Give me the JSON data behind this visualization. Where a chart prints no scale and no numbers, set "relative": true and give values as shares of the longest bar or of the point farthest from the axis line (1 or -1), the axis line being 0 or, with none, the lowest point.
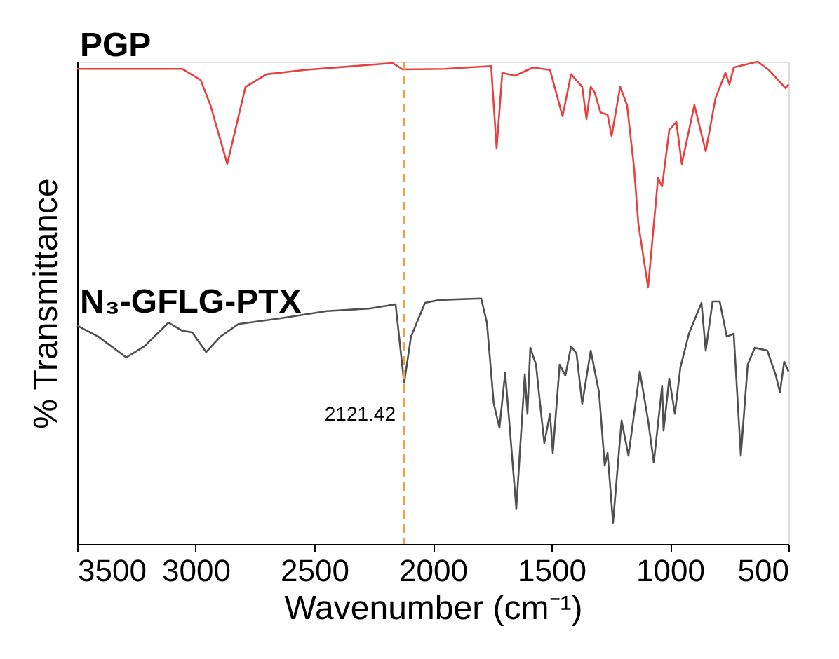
{
  "chart_data": {
    "type": "line",
    "relative": true,
    "xlabel": "Wavenumber (cm⁻¹)",
    "ylabel": "% Transmittance",
    "xlim": [
      3500,
      500
    ],
    "xticks": [
      3500,
      3000,
      2500,
      2000,
      1500,
      1000,
      500
    ],
    "grid": false,
    "legend": false,
    "line_style": "solid",
    "marker": "none",
    "series": [
      {
        "name": "PGP",
        "color": "#e8403f",
        "x": [
          3500,
          3056,
          2979,
          2938,
          2867,
          2790,
          2701,
          2541,
          2169,
          2127,
          1950,
          1754,
          1731,
          1707,
          1654,
          1577,
          1506,
          1453,
          1417,
          1370,
          1352,
          1334,
          1317,
          1293,
          1263,
          1246,
          1210,
          1181,
          1151,
          1133,
          1092,
          1068,
          1050,
          1033,
          1003,
          973,
          950,
          897,
          849,
          808,
          766,
          749,
          731,
          630,
          583,
          512,
          500
        ],
        "values": [
          0.985,
          0.985,
          0.962,
          0.91,
          0.788,
          0.948,
          0.974,
          0.983,
          0.997,
          0.984,
          0.985,
          0.991,
          0.82,
          0.977,
          0.971,
          0.988,
          0.983,
          0.887,
          0.974,
          0.948,
          0.881,
          0.948,
          0.936,
          0.895,
          0.89,
          0.846,
          0.948,
          0.91,
          0.779,
          0.663,
          0.532,
          0.663,
          0.759,
          0.741,
          0.858,
          0.875,
          0.788,
          0.91,
          0.814,
          0.924,
          0.977,
          0.953,
          0.988,
          1.0,
          0.983,
          0.945,
          0.953
        ]
      },
      {
        "name": "N₃-GFLG-PTX",
        "color": "#505050",
        "x": [
          3500,
          3411,
          3293,
          3216,
          3115,
          3056,
          3015,
          2956,
          2896,
          2820,
          2642,
          2447,
          2269,
          2157,
          2121,
          2092,
          2033,
          1973,
          1796,
          1772,
          1743,
          1719,
          1695,
          1678,
          1648,
          1612,
          1601,
          1589,
          1565,
          1530,
          1506,
          1494,
          1465,
          1441,
          1417,
          1394,
          1370,
          1334,
          1299,
          1275,
          1263,
          1240,
          1204,
          1175,
          1127,
          1092,
          1068,
          1033,
          1027,
          1003,
          979,
          956,
          920,
          867,
          849,
          820,
          790,
          760,
          731,
          701,
          672,
          642,
          589,
          553,
          536,
          518,
          500
        ],
        "values": [
          0.453,
          0.43,
          0.387,
          0.41,
          0.459,
          0.442,
          0.439,
          0.398,
          0.43,
          0.456,
          0.468,
          0.483,
          0.488,
          0.497,
          0.334,
          0.43,
          0.5,
          0.506,
          0.509,
          0.459,
          0.291,
          0.241,
          0.355,
          0.256,
          0.073,
          0.352,
          0.27,
          0.407,
          0.372,
          0.209,
          0.27,
          0.189,
          0.372,
          0.349,
          0.41,
          0.395,
          0.291,
          0.401,
          0.314,
          0.163,
          0.189,
          0.044,
          0.256,
          0.183,
          0.358,
          0.256,
          0.169,
          0.328,
          0.235,
          0.343,
          0.27,
          0.366,
          0.436,
          0.5,
          0.401,
          0.503,
          0.503,
          0.43,
          0.436,
          0.183,
          0.372,
          0.407,
          0.401,
          0.349,
          0.314,
          0.378,
          0.358
        ]
      }
    ],
    "ref_lines": [
      {
        "axis": "x",
        "value": 2121.42,
        "color": "#f0a040",
        "line_style": "dashed"
      }
    ],
    "annotations": [
      {
        "text": "2121.42",
        "x": 2121.42,
        "y": 0.334
      }
    ]
  }
}
